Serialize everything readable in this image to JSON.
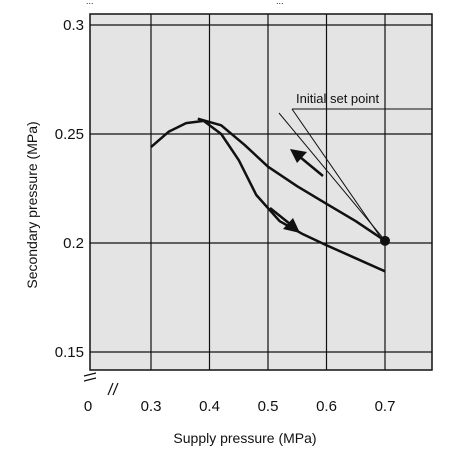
{
  "header_fragment_left": "...",
  "header_fragment_right": "...",
  "chart_data": {
    "type": "line",
    "xlabel": "Supply pressure (MPa)",
    "ylabel": "Secondary pressure (MPa)",
    "x_ticks": [
      "0",
      "0.3",
      "0.4",
      "0.5",
      "0.6",
      "0.7"
    ],
    "y_ticks": [
      "0.15",
      "0.2",
      "0.25",
      "0.3"
    ],
    "xlim": [
      0.2,
      0.8
    ],
    "ylim": [
      0.13,
      0.31
    ],
    "axis_break_x": true,
    "axis_break_y": true,
    "grid": true,
    "annotation": "Initial set point",
    "set_point": {
      "x": 0.7,
      "y": 0.201
    },
    "series": [
      {
        "curve": "upper",
        "x": [
          0.38,
          0.42,
          0.46,
          0.5,
          0.55,
          0.6,
          0.65,
          0.7
        ],
        "y": [
          0.257,
          0.254,
          0.245,
          0.235,
          0.226,
          0.218,
          0.21,
          0.201
        ]
      },
      {
        "curve": "lower",
        "x": [
          0.3,
          0.33,
          0.36,
          0.39,
          0.42,
          0.45,
          0.48,
          0.52,
          0.56,
          0.6,
          0.65,
          0.7
        ],
        "y": [
          0.244,
          0.251,
          0.255,
          0.256,
          0.25,
          0.238,
          0.222,
          0.21,
          0.204,
          0.199,
          0.193,
          0.187
        ]
      }
    ]
  }
}
